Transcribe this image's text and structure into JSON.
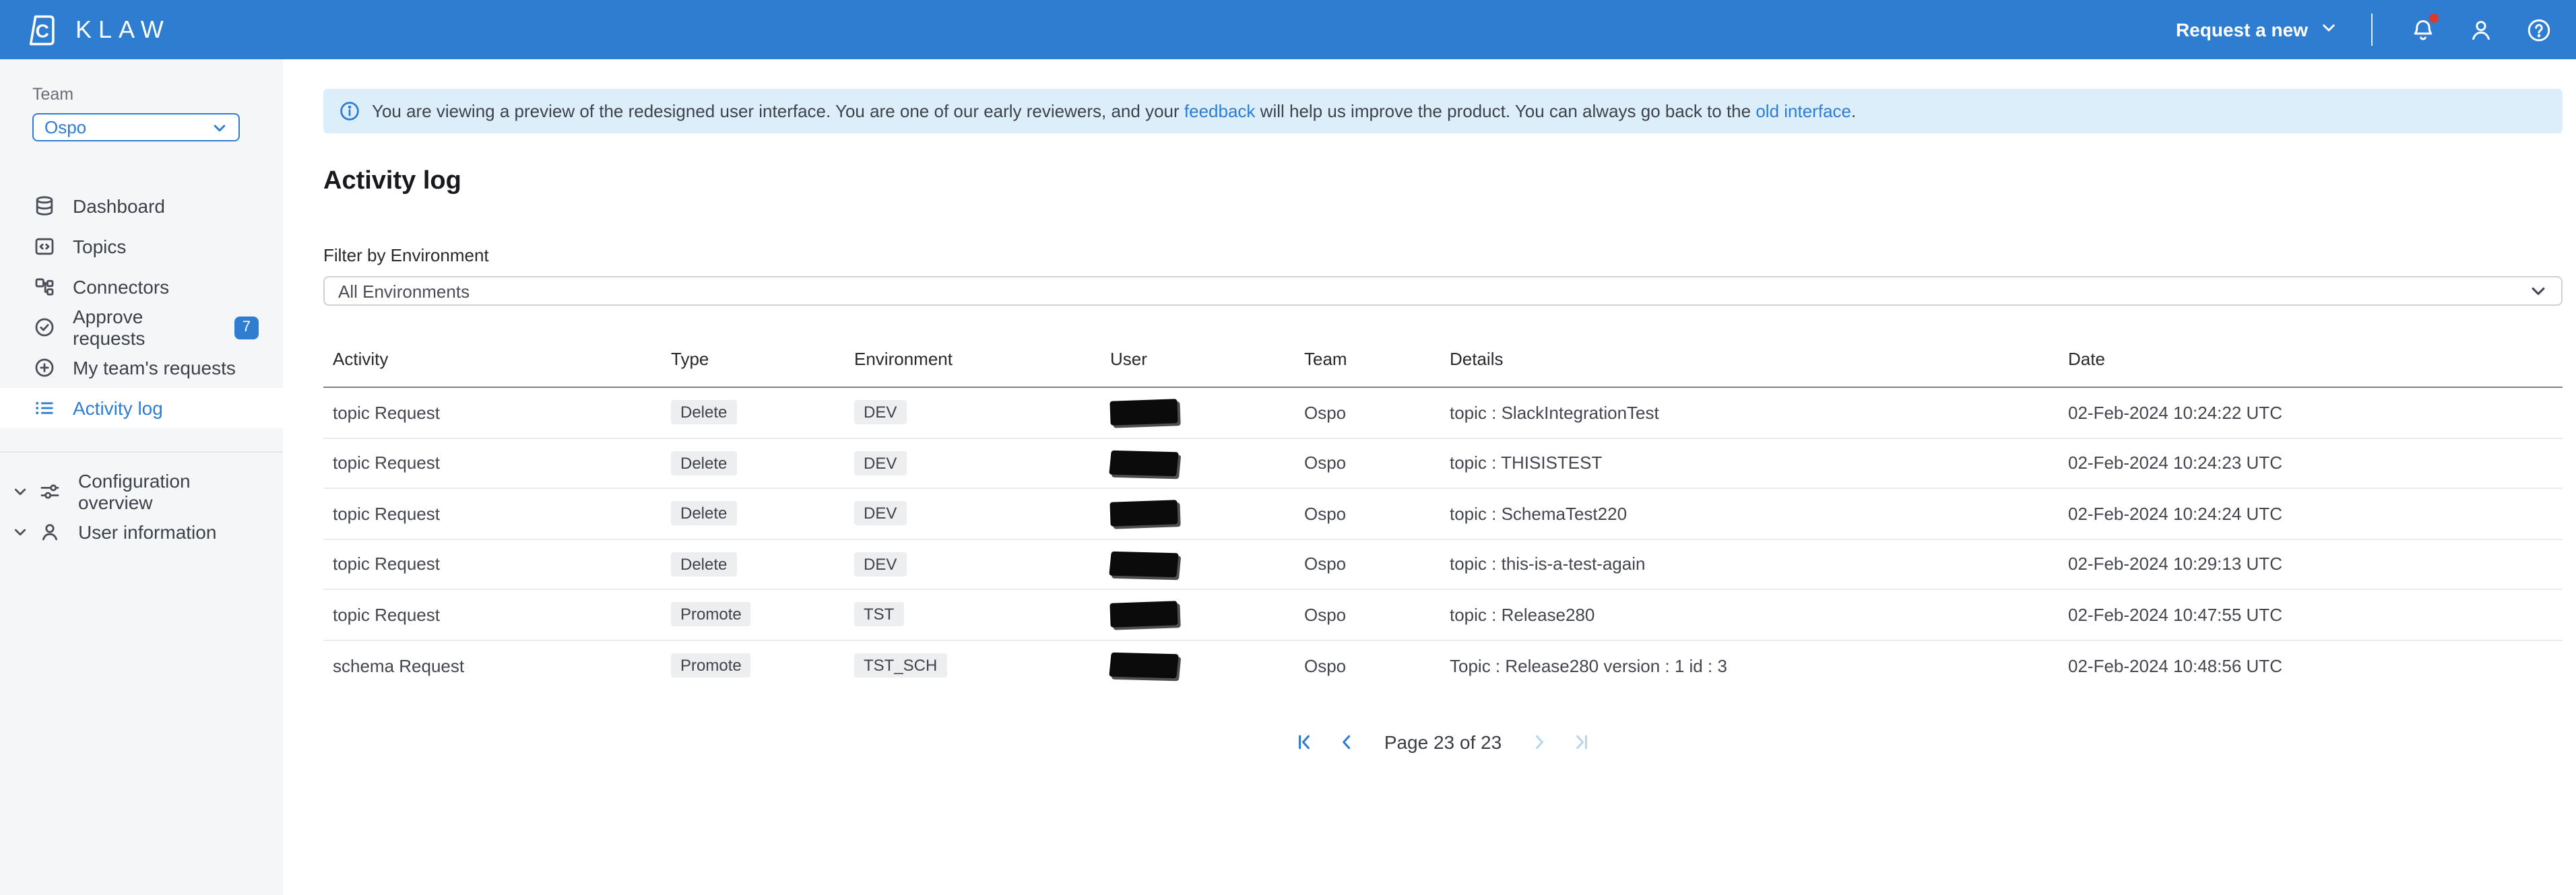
{
  "colors": {
    "accent": "#2e7dd1",
    "link": "#2e7dd1",
    "banner_bg": "#ddeefb",
    "notification_dot": "#d63b30",
    "badge_bg": "#eceef0",
    "sidebar_bg": "#f5f6f8",
    "active_nav_bg": "#ffffff"
  },
  "header": {
    "brand": "KLAW",
    "request_new_label": "Request a new",
    "icons": [
      "notification-bell-icon",
      "profile-icon",
      "help-icon"
    ],
    "notification_has_dot": true
  },
  "sidebar": {
    "team_label": "Team",
    "team_value": "Ospo",
    "items": [
      {
        "label": "Dashboard",
        "icon": "database-icon",
        "active": false,
        "badge": null
      },
      {
        "label": "Topics",
        "icon": "topics-icon",
        "active": false,
        "badge": null
      },
      {
        "label": "Connectors",
        "icon": "connectors-icon",
        "active": false,
        "badge": null
      },
      {
        "label": "Approve requests",
        "icon": "approve-check-icon",
        "active": false,
        "badge": "7"
      },
      {
        "label": "My team's requests",
        "icon": "plus-circle-icon",
        "active": false,
        "badge": null
      },
      {
        "label": "Activity log",
        "icon": "activity-list-icon",
        "active": true,
        "badge": null
      }
    ],
    "secondary_items": [
      {
        "label": "Configuration overview",
        "icon": "sliders-icon"
      },
      {
        "label": "User information",
        "icon": "user-icon"
      }
    ]
  },
  "banner": {
    "part1": "You are viewing a preview of the redesigned user interface. You are one of our early reviewers, and your ",
    "feedback_link": "feedback",
    "part2": " will help us improve the product. You can always go back to the ",
    "old_interface_link": "old interface",
    "part3": "."
  },
  "page": {
    "title": "Activity log"
  },
  "filter": {
    "label": "Filter by Environment",
    "value": "All Environments"
  },
  "table": {
    "columns": [
      "Activity",
      "Type",
      "Environment",
      "User",
      "Team",
      "Details",
      "Date"
    ],
    "rows": [
      {
        "activity": "topic Request",
        "type": "Delete",
        "environment": "DEV",
        "user_redacted": true,
        "team": "Ospo",
        "details": "topic : SlackIntegrationTest",
        "date": "02-Feb-2024 10:24:22 UTC"
      },
      {
        "activity": "topic Request",
        "type": "Delete",
        "environment": "DEV",
        "user_redacted": true,
        "team": "Ospo",
        "details": "topic : THISISTEST",
        "date": "02-Feb-2024 10:24:23 UTC"
      },
      {
        "activity": "topic Request",
        "type": "Delete",
        "environment": "DEV",
        "user_redacted": true,
        "team": "Ospo",
        "details": "topic : SchemaTest220",
        "date": "02-Feb-2024 10:24:24 UTC"
      },
      {
        "activity": "topic Request",
        "type": "Delete",
        "environment": "DEV",
        "user_redacted": true,
        "team": "Ospo",
        "details": "topic : this-is-a-test-again",
        "date": "02-Feb-2024 10:29:13 UTC"
      },
      {
        "activity": "topic Request",
        "type": "Promote",
        "environment": "TST",
        "user_redacted": true,
        "team": "Ospo",
        "details": "topic : Release280",
        "date": "02-Feb-2024 10:47:55 UTC"
      },
      {
        "activity": "schema Request",
        "type": "Promote",
        "environment": "TST_SCH",
        "user_redacted": true,
        "team": "Ospo",
        "details": "Topic : Release280 version : 1 id : 3",
        "date": "02-Feb-2024 10:48:56 UTC"
      }
    ]
  },
  "pagination": {
    "label": "Page 23 of 23",
    "first_enabled": true,
    "previous_enabled": true,
    "next_enabled": false,
    "last_enabled": false
  }
}
